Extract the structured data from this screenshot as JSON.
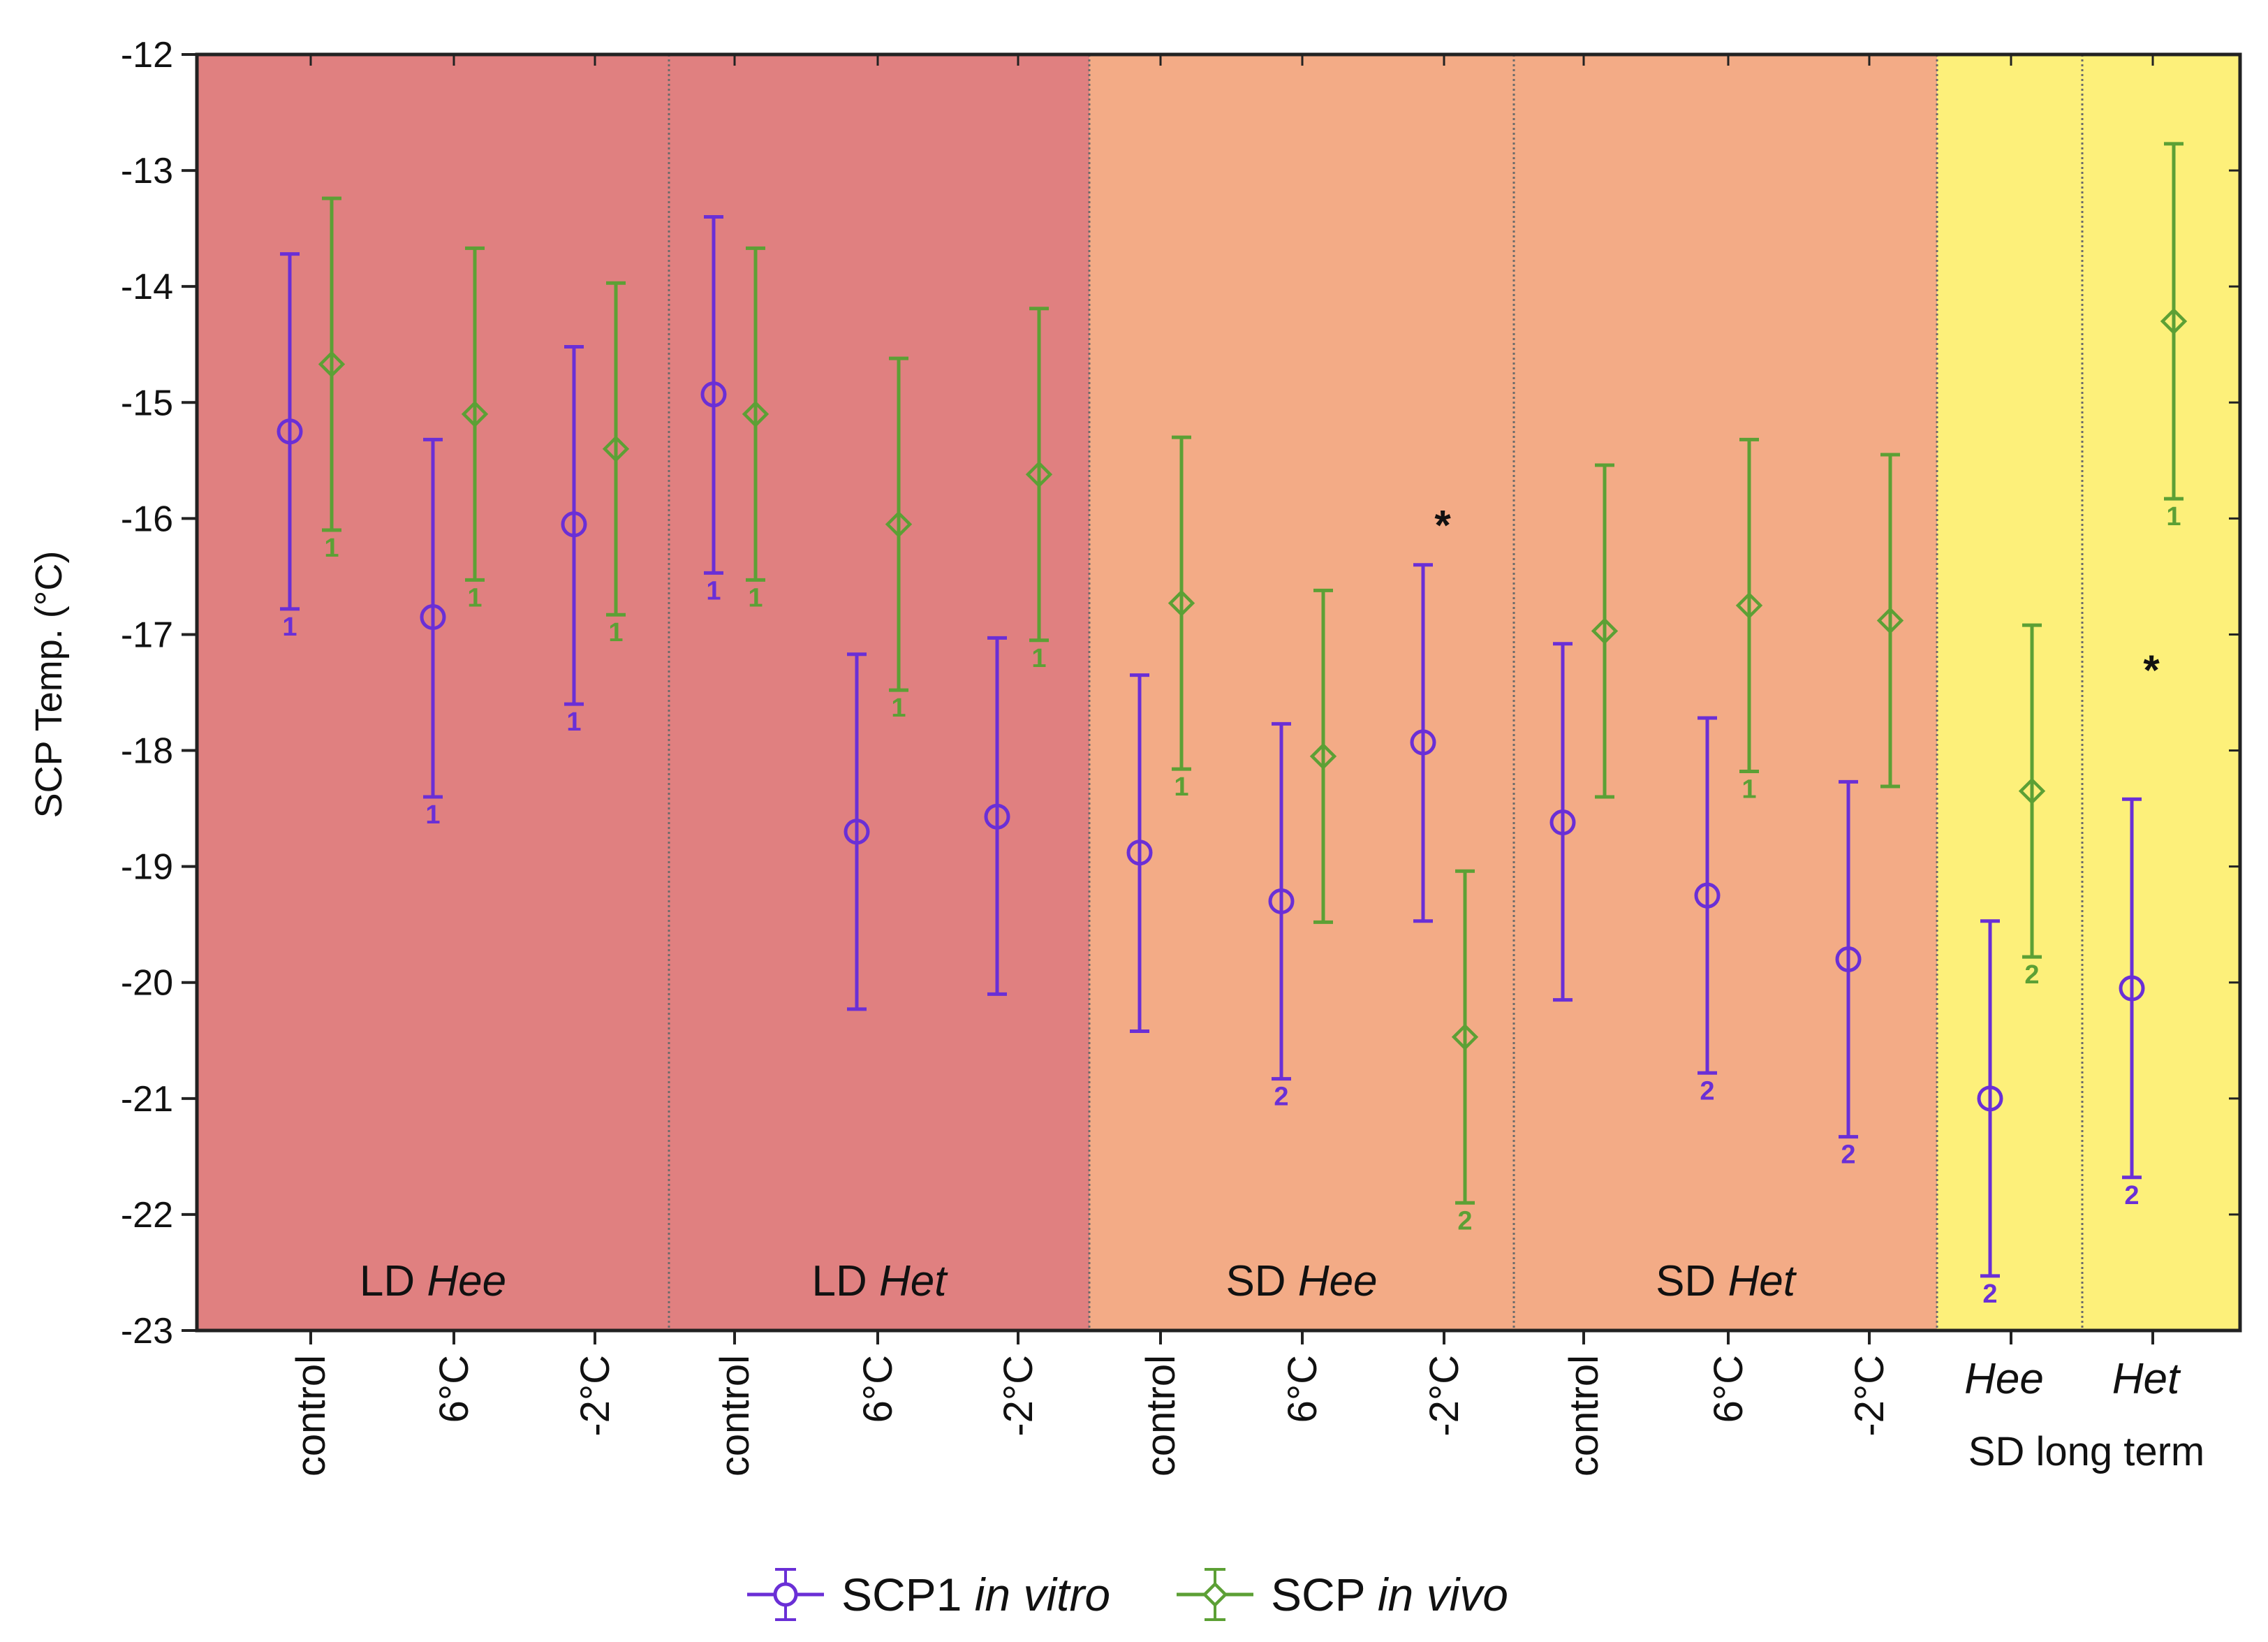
{
  "chart_data": {
    "type": "errorbar",
    "ylabel": "SCP Temp. (°C)",
    "ylim": [
      -23,
      -12
    ],
    "yticks": [
      -12,
      -13,
      -14,
      -15,
      -16,
      -17,
      -18,
      -19,
      -20,
      -21,
      -22,
      -23
    ],
    "panels": [
      {
        "label": "LD",
        "label_italic": "Hee",
        "color": "#e08080"
      },
      {
        "label": "LD",
        "label_italic": "Het",
        "color": "#e08080"
      },
      {
        "label": "SD",
        "label_italic": "Hee",
        "color": "#f3ab86"
      },
      {
        "label": "SD",
        "label_italic": "Het",
        "color": "#f3ab86"
      },
      {
        "label": "",
        "label_italic": "",
        "color": "#fdf07a"
      },
      {
        "label": "",
        "label_italic": "",
        "color": "#fdf07a"
      }
    ],
    "categories": [
      "control",
      "6°C",
      "-2°C",
      "control",
      "6°C",
      "-2°C",
      "control",
      "6°C",
      "-2°C",
      "control",
      "6°C",
      "-2°C",
      "Hee",
      "Het"
    ],
    "category_panel": [
      0,
      0,
      0,
      1,
      1,
      1,
      2,
      2,
      2,
      3,
      3,
      3,
      4,
      5
    ],
    "long_term_label": "SD long term",
    "series": [
      {
        "name": "SCP1",
        "name_italic": "in vitro",
        "color": "#6a2fd6",
        "marker": "circle",
        "values": [
          -15.25,
          -16.85,
          -16.05,
          -14.93,
          -18.7,
          -18.57,
          -18.88,
          -19.3,
          -17.93,
          -18.62,
          -19.25,
          -19.8,
          -21.0,
          -20.05
        ],
        "lower": [
          -16.78,
          -18.4,
          -17.6,
          -16.47,
          -20.23,
          -20.1,
          -20.42,
          -20.83,
          -19.47,
          -20.15,
          -20.78,
          -21.33,
          -22.53,
          -21.68
        ],
        "upper": [
          -13.72,
          -15.32,
          -14.52,
          -13.4,
          -17.17,
          -17.03,
          -17.35,
          -17.77,
          -16.4,
          -17.08,
          -17.72,
          -18.27,
          -19.47,
          -18.42
        ],
        "notes": [
          "1",
          "1",
          "1",
          "1",
          "",
          "",
          "",
          "2",
          "",
          "",
          "2",
          "2",
          "2",
          "2"
        ]
      },
      {
        "name": "SCP",
        "name_italic": "in vivo",
        "color": "#5ca035",
        "marker": "diamond",
        "values": [
          -14.67,
          -15.1,
          -15.4,
          -15.1,
          -16.05,
          -15.62,
          -16.73,
          -18.05,
          -20.47,
          -16.97,
          -16.75,
          -16.88,
          -18.35,
          -14.3
        ],
        "lower": [
          -16.1,
          -16.53,
          -16.83,
          -16.53,
          -17.48,
          -17.05,
          -18.16,
          -19.48,
          -21.9,
          -18.4,
          -18.18,
          -18.31,
          -19.78,
          -15.83
        ],
        "upper": [
          -13.24,
          -13.67,
          -13.97,
          -13.67,
          -14.62,
          -14.19,
          -15.3,
          -16.62,
          -19.04,
          -15.54,
          -15.32,
          -15.45,
          -16.92,
          -12.77
        ],
        "notes": [
          "1",
          "1",
          "1",
          "1",
          "1",
          "1",
          "1",
          "",
          "2",
          "",
          "1",
          "",
          "2",
          "1"
        ]
      }
    ],
    "significance": [
      {
        "category_index": 8,
        "symbol": "*",
        "y": -16.0
      },
      {
        "category_index": 13,
        "symbol": "*",
        "y": -17.25
      }
    ],
    "legend": [
      {
        "series": 0,
        "text": "SCP1",
        "text_italic": "in vitro"
      },
      {
        "series": 1,
        "text": "SCP",
        "text_italic": "in vivo"
      }
    ],
    "legend_position": "bottom-center"
  }
}
